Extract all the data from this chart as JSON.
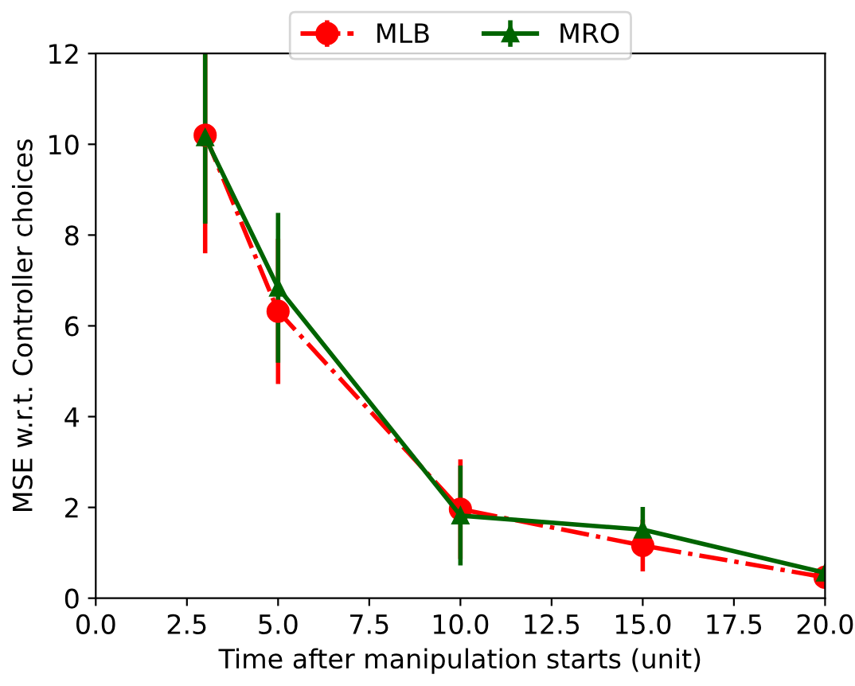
{
  "chart_data": {
    "type": "line",
    "xlabel": "Time after manipulation starts (unit)",
    "ylabel": "MSE w.r.t. Controller choices",
    "x": [
      3,
      5,
      10,
      15,
      20
    ],
    "series": [
      {
        "name": "MLB",
        "color": "#ff0000",
        "marker": "circle",
        "line_style": "dashdot",
        "values": [
          10.2,
          6.32,
          1.96,
          1.16,
          0.46
        ],
        "errors": [
          2.6,
          1.6,
          1.1,
          0.57,
          0
        ]
      },
      {
        "name": "MRO",
        "color": "#006400",
        "marker": "triangle",
        "line_style": "solid",
        "values": [
          10.15,
          6.84,
          1.82,
          1.51,
          0.56
        ],
        "errors": [
          1.9,
          1.65,
          1.1,
          0.5,
          0
        ]
      }
    ],
    "xlim": [
      0,
      20
    ],
    "ylim": [
      0,
      12
    ],
    "xticks": [
      {
        "value": 0,
        "label": "0.0"
      },
      {
        "value": 2.5,
        "label": "2.5"
      },
      {
        "value": 5,
        "label": "5.0"
      },
      {
        "value": 7.5,
        "label": "7.5"
      },
      {
        "value": 10,
        "label": "10.0"
      },
      {
        "value": 12.5,
        "label": "12.5"
      },
      {
        "value": 15,
        "label": "15.0"
      },
      {
        "value": 17.5,
        "label": "17.5"
      },
      {
        "value": 20,
        "label": "20.0"
      }
    ],
    "yticks": [
      0,
      2,
      4,
      6,
      8,
      10,
      12
    ],
    "legend": "top",
    "grid": false
  }
}
